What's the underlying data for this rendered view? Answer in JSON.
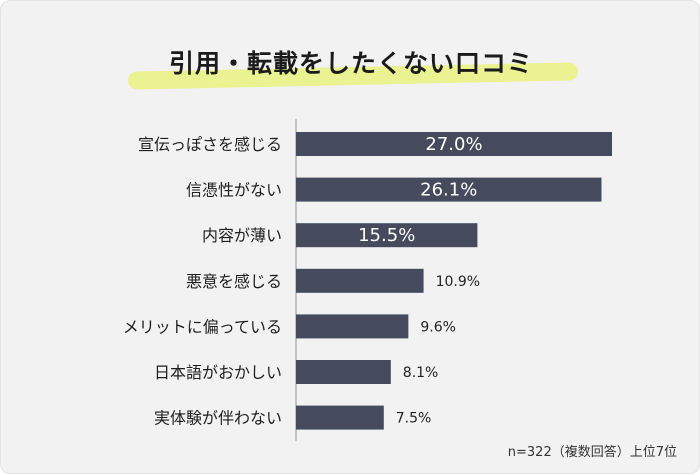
{
  "colors": {
    "bar": "#454b5c",
    "highlight": "#eaf291",
    "axis": "#b5b5b5",
    "label_inside": "#ffffff",
    "label_outside": "#222222"
  },
  "chart_data": {
    "type": "bar",
    "orientation": "horizontal",
    "title": "引用・転載をしたくない口コミ",
    "categories": [
      "宣伝っぽさを感じる",
      "信憑性がない",
      "内容が薄い",
      "悪意を感じる",
      "メリットに偏っている",
      "日本語がおかしい",
      "実体験が伴わない"
    ],
    "values": [
      27.0,
      26.1,
      15.5,
      10.9,
      9.6,
      8.1,
      7.5
    ],
    "value_labels": [
      "27.0%",
      "26.1%",
      "15.5%",
      "10.9%",
      "9.6%",
      "8.1%",
      "7.5%"
    ],
    "xlim": [
      0,
      27.0
    ],
    "grid": false,
    "note": "n=322（複数回答）上位7位"
  }
}
